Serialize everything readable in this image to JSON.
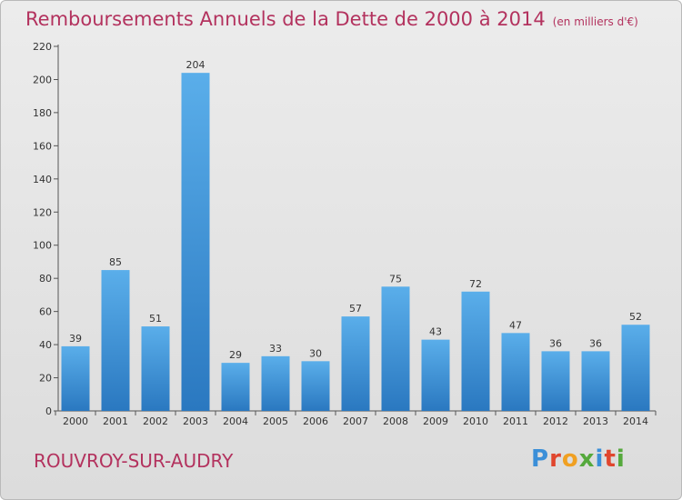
{
  "chart_data": {
    "type": "bar",
    "title": "Remboursements Annuels de la Dette de 2000 à 2014",
    "unit_note": "(en milliers d'€)",
    "categories": [
      "2000",
      "2001",
      "2002",
      "2003",
      "2004",
      "2005",
      "2006",
      "2007",
      "2008",
      "2009",
      "2010",
      "2011",
      "2012",
      "2013",
      "2014"
    ],
    "values": [
      39,
      85,
      51,
      204,
      29,
      33,
      30,
      57,
      75,
      43,
      72,
      47,
      36,
      36,
      52
    ],
    "ylim": [
      0,
      220
    ],
    "yticks": [
      0,
      20,
      40,
      60,
      80,
      100,
      120,
      140,
      160,
      180,
      200,
      220
    ],
    "grid": false,
    "bar_color": "#3a8fd8"
  },
  "footer": {
    "city": "ROUVROY-SUR-AUDRY",
    "logo_letters": [
      "P",
      "r",
      "o",
      "x",
      "i",
      "t",
      "i"
    ],
    "logo_colors": [
      "#3b8fd8",
      "#e0462e",
      "#f0a022",
      "#55a93c",
      "#3b8fd8",
      "#e0462e",
      "#55a93c"
    ]
  }
}
